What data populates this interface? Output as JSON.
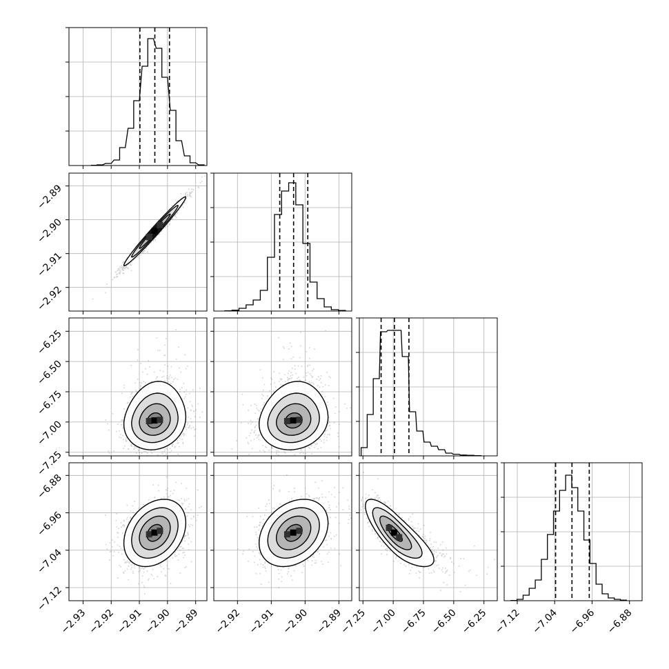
{
  "chart_data": {
    "type": "corner",
    "variables": [
      {
        "range": [
          -2.935,
          -2.886
        ],
        "bins": [
          {
            "x": -2.926,
            "y": 0.002
          },
          {
            "x": -2.924,
            "y": 0.005
          },
          {
            "x": -2.921,
            "y": 0.015
          },
          {
            "x": -2.918,
            "y": 0.04
          },
          {
            "x": -2.916,
            "y": 0.13
          },
          {
            "x": -2.913,
            "y": 0.27
          },
          {
            "x": -2.911,
            "y": 0.47
          },
          {
            "x": -2.908,
            "y": 0.72
          },
          {
            "x": -2.906,
            "y": 0.92
          },
          {
            "x": -2.903,
            "y": 0.85
          },
          {
            "x": -2.901,
            "y": 0.64
          },
          {
            "x": -2.898,
            "y": 0.4
          },
          {
            "x": -2.896,
            "y": 0.18
          },
          {
            "x": -2.893,
            "y": 0.07
          },
          {
            "x": -2.891,
            "y": 0.02
          },
          {
            "x": -2.888,
            "y": 0.005
          }
        ],
        "quantiles": [
          -2.9098,
          -2.9045,
          -2.8993
        ],
        "ticks": [
          {
            "value": -2.93,
            "label": "−2.93"
          },
          {
            "value": -2.92,
            "label": "−2.92"
          },
          {
            "value": -2.91,
            "label": "−2.91"
          },
          {
            "value": -2.9,
            "label": "−2.90"
          },
          {
            "value": -2.89,
            "label": "−2.89"
          }
        ]
      },
      {
        "range": [
          -2.927,
          -2.8862
        ],
        "bins": [
          {
            "x": -2.9227,
            "y": 0.002
          },
          {
            "x": -2.9206,
            "y": 0.006
          },
          {
            "x": -2.9185,
            "y": 0.02
          },
          {
            "x": -2.9164,
            "y": 0.045
          },
          {
            "x": -2.9143,
            "y": 0.08
          },
          {
            "x": -2.9122,
            "y": 0.15
          },
          {
            "x": -2.9101,
            "y": 0.39
          },
          {
            "x": -2.908,
            "y": 0.7
          },
          {
            "x": -2.9059,
            "y": 0.87
          },
          {
            "x": -2.9038,
            "y": 0.93
          },
          {
            "x": -2.9017,
            "y": 0.77
          },
          {
            "x": -2.8996,
            "y": 0.49
          },
          {
            "x": -2.8975,
            "y": 0.21
          },
          {
            "x": -2.8954,
            "y": 0.09
          },
          {
            "x": -2.8933,
            "y": 0.03
          },
          {
            "x": -2.8912,
            "y": 0.01
          },
          {
            "x": -2.8891,
            "y": 0.004
          }
        ],
        "quantiles": [
          -2.9075,
          -2.9034,
          -2.8992
        ],
        "ticks": [
          {
            "value": -2.92,
            "label": "−2.92"
          },
          {
            "value": -2.91,
            "label": "−2.91"
          },
          {
            "value": -2.9,
            "label": "−2.90"
          },
          {
            "value": -2.89,
            "label": "−2.89"
          }
        ]
      },
      {
        "range": [
          -7.28,
          -6.14
        ],
        "bins": [
          {
            "x": -7.24,
            "y": 0.06
          },
          {
            "x": -7.19,
            "y": 0.3
          },
          {
            "x": -7.14,
            "y": 0.56
          },
          {
            "x": -7.08,
            "y": 0.9
          },
          {
            "x": -7.02,
            "y": 0.91
          },
          {
            "x": -6.96,
            "y": 0.91
          },
          {
            "x": -6.9,
            "y": 0.72
          },
          {
            "x": -6.84,
            "y": 0.32
          },
          {
            "x": -6.78,
            "y": 0.18
          },
          {
            "x": -6.72,
            "y": 0.1
          },
          {
            "x": -6.66,
            "y": 0.07
          },
          {
            "x": -6.6,
            "y": 0.045
          },
          {
            "x": -6.54,
            "y": 0.02
          },
          {
            "x": -6.48,
            "y": 0.012
          },
          {
            "x": -6.42,
            "y": 0.006
          },
          {
            "x": -6.36,
            "y": 0.004
          },
          {
            "x": -6.3,
            "y": 0.002
          }
        ],
        "quantiles": [
          -7.1,
          -6.99,
          -6.87
        ],
        "ticks": [
          {
            "value": -7.25,
            "label": "−7.25"
          },
          {
            "value": -7.0,
            "label": "−7.00"
          },
          {
            "value": -6.75,
            "label": "−6.75"
          },
          {
            "value": -6.5,
            "label": "−6.50"
          },
          {
            "value": -6.25,
            "label": "−6.25"
          }
        ]
      },
      {
        "range": [
          -7.148,
          -6.853
        ],
        "bins": [
          {
            "x": -7.127,
            "y": 0.002
          },
          {
            "x": -7.114,
            "y": 0.01
          },
          {
            "x": -7.101,
            "y": 0.04
          },
          {
            "x": -7.088,
            "y": 0.09
          },
          {
            "x": -7.075,
            "y": 0.15
          },
          {
            "x": -7.062,
            "y": 0.3
          },
          {
            "x": -7.049,
            "y": 0.48
          },
          {
            "x": -7.036,
            "y": 0.65
          },
          {
            "x": -7.023,
            "y": 0.8
          },
          {
            "x": -7.01,
            "y": 0.91
          },
          {
            "x": -6.997,
            "y": 0.82
          },
          {
            "x": -6.984,
            "y": 0.65
          },
          {
            "x": -6.971,
            "y": 0.44
          },
          {
            "x": -6.958,
            "y": 0.27
          },
          {
            "x": -6.945,
            "y": 0.12
          },
          {
            "x": -6.932,
            "y": 0.05
          },
          {
            "x": -6.919,
            "y": 0.02
          },
          {
            "x": -6.906,
            "y": 0.01
          },
          {
            "x": -6.893,
            "y": 0.004
          }
        ],
        "quantiles": [
          -7.038,
          -7.003,
          -6.966
        ],
        "ticks": [
          {
            "value": -7.12,
            "label": "−7.12"
          },
          {
            "value": -7.04,
            "label": "−7.04"
          },
          {
            "value": -6.96,
            "label": "−6.96"
          },
          {
            "value": -6.88,
            "label": "−6.88"
          }
        ]
      }
    ],
    "y_tick_labels": {
      "1": [
        {
          "value": -2.89,
          "label": "−2.89"
        },
        {
          "value": -2.9,
          "label": "−2.90"
        },
        {
          "value": -2.91,
          "label": "−2.91"
        },
        {
          "value": -2.92,
          "label": "−2.92"
        }
      ],
      "2": [
        {
          "value": -6.25,
          "label": "−6.25"
        },
        {
          "value": -6.5,
          "label": "−6.50"
        },
        {
          "value": -6.75,
          "label": "−6.75"
        },
        {
          "value": -7.0,
          "label": "−7.00"
        },
        {
          "value": -7.25,
          "label": "−7.25"
        }
      ],
      "3": [
        {
          "value": -6.88,
          "label": "−6.88"
        },
        {
          "value": -6.96,
          "label": "−6.96"
        },
        {
          "value": -7.04,
          "label": "−7.04"
        },
        {
          "value": -7.12,
          "label": "−7.12"
        }
      ]
    },
    "pairs": [
      {
        "row": 1,
        "col": 0,
        "center": [
          -2.9045,
          -2.9034
        ],
        "sd": [
          0.0055,
          0.0051
        ],
        "corr": 0.985,
        "skew": [
          0,
          0
        ]
      },
      {
        "row": 2,
        "col": 0,
        "center": [
          -2.9045,
          -6.99
        ],
        "sd": [
          0.0055,
          0.12
        ],
        "corr": 0.12,
        "skew": [
          0,
          1
        ]
      },
      {
        "row": 2,
        "col": 1,
        "center": [
          -2.9034,
          -6.99
        ],
        "sd": [
          0.0051,
          0.12
        ],
        "corr": 0.12,
        "skew": [
          0,
          1
        ]
      },
      {
        "row": 3,
        "col": 0,
        "center": [
          -2.9045,
          -7.003
        ],
        "sd": [
          0.0055,
          0.036
        ],
        "corr": 0.3,
        "skew": [
          0,
          0
        ]
      },
      {
        "row": 3,
        "col": 1,
        "center": [
          -2.9034,
          -7.003
        ],
        "sd": [
          0.0051,
          0.036
        ],
        "corr": 0.3,
        "skew": [
          0,
          0
        ]
      },
      {
        "row": 3,
        "col": 2,
        "center": [
          -6.99,
          -7.003
        ],
        "sd": [
          0.12,
          0.036
        ],
        "corr": -0.8,
        "skew": [
          1,
          0
        ]
      }
    ],
    "grid": true,
    "colors": {
      "ink": "#000000",
      "grid": "#b0b0b0",
      "samples": "#7a7a7a"
    }
  }
}
